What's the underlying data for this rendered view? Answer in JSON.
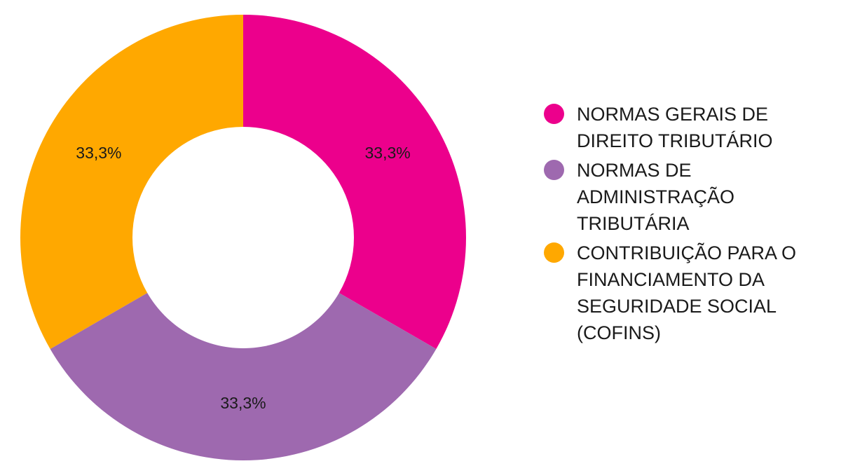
{
  "chart_data": {
    "type": "pie",
    "donut": true,
    "title": "",
    "legend_position": "right",
    "categories": [
      "NORMAS GERAIS DE DIREITO TRIBUTÁRIO",
      "NORMAS DE ADMINISTRAÇÃO TRIBUTÁRIA",
      "CONTRIBUIÇÃO PARA O FINANCIAMENTO DA SEGURIDADE SOCIAL (COFINS)"
    ],
    "values": [
      33.3,
      33.3,
      33.3
    ],
    "data_labels": [
      "33,3%",
      "33,3%",
      "33,3%"
    ],
    "colors": [
      "#ec008c",
      "#9e69af",
      "#ffa800"
    ]
  }
}
